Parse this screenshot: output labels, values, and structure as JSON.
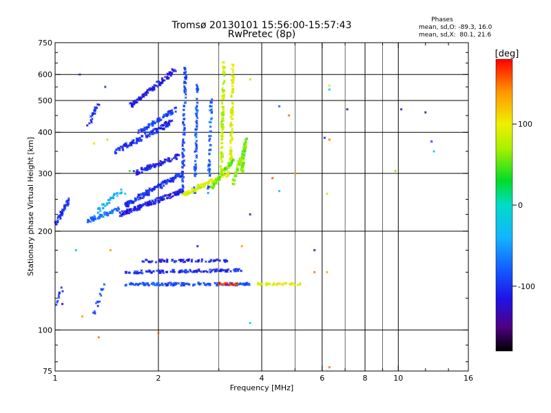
{
  "header": {
    "title": "Tromsø 20130101 15:56:00-15:57:43",
    "subtitle": "RwPretec (8p)",
    "phase_block": {
      "heading": "Phases",
      "line_o": "mean, sd,O: -89.3, 16.0",
      "line_x": "mean, sd,X:  80.1, 21.6"
    }
  },
  "colorbar": {
    "unit_label": "[deg]",
    "ticks": [
      {
        "value": 100,
        "label": "100"
      },
      {
        "value": 0,
        "label": "0"
      },
      {
        "value": -100,
        "label": "-100"
      }
    ],
    "range": [
      -180,
      180
    ]
  },
  "chart_data": {
    "type": "scatter",
    "xlabel": "Frequency [MHz]",
    "ylabel": "Stationary phase Virtual Height [km]",
    "x_scale": "log",
    "y_scale": "log",
    "xlim": [
      1,
      16
    ],
    "ylim": [
      75,
      750
    ],
    "grid": true,
    "x_ticks": [
      {
        "value": 1,
        "label": "1"
      },
      {
        "value": 2,
        "label": "2"
      },
      {
        "value": 4,
        "label": "4"
      },
      {
        "value": 6,
        "label": "6"
      },
      {
        "value": 8,
        "label": "8"
      },
      {
        "value": 10,
        "label": "10"
      },
      {
        "value": 16,
        "label": "16"
      }
    ],
    "x_minor_ticks": [
      3,
      5,
      7,
      9,
      12,
      14
    ],
    "x_grid_major": [
      2,
      4,
      6,
      8,
      10
    ],
    "x_grid_minor": [
      3,
      5,
      7,
      9
    ],
    "y_ticks": [
      {
        "value": 75,
        "label": "75"
      },
      {
        "value": 100,
        "label": "100"
      },
      {
        "value": 200,
        "label": "200"
      },
      {
        "value": 300,
        "label": "300"
      },
      {
        "value": 400,
        "label": "400"
      },
      {
        "value": 500,
        "label": "500"
      },
      {
        "value": 600,
        "label": "600"
      },
      {
        "value": 750,
        "label": "750"
      }
    ],
    "y_minor_ticks": [
      80,
      90,
      125,
      150,
      175,
      225,
      250,
      350,
      450,
      550,
      650,
      700
    ],
    "y_grid": [
      100,
      200,
      300,
      400,
      500,
      600
    ],
    "color_variable": "phase [deg]",
    "traces": [
      {
        "f0": 1.0,
        "f1": 1.1,
        "h0": 210,
        "h1": 250,
        "ph": -105,
        "w": 0.03,
        "n": 50
      },
      {
        "f0": 1.25,
        "f1": 1.55,
        "h0": 215,
        "h1": 235,
        "ph": -70,
        "w": 0.03,
        "n": 60
      },
      {
        "f0": 1.3,
        "f1": 1.55,
        "h0": 225,
        "h1": 265,
        "ph": -40,
        "w": 0.035,
        "n": 40
      },
      {
        "f0": 1.55,
        "f1": 2.35,
        "h0": 225,
        "h1": 265,
        "ph": -115,
        "w": 0.03,
        "n": 160
      },
      {
        "f0": 1.6,
        "f1": 2.35,
        "h0": 240,
        "h1": 300,
        "ph": -100,
        "w": 0.035,
        "n": 150
      },
      {
        "f0": 1.7,
        "f1": 2.3,
        "h0": 300,
        "h1": 340,
        "ph": -110,
        "w": 0.03,
        "n": 90
      },
      {
        "f0": 1.5,
        "f1": 2.2,
        "h0": 350,
        "h1": 430,
        "ph": -105,
        "w": 0.035,
        "n": 120
      },
      {
        "f0": 1.75,
        "f1": 2.25,
        "h0": 400,
        "h1": 470,
        "ph": -95,
        "w": 0.03,
        "n": 80
      },
      {
        "f0": 1.65,
        "f1": 2.25,
        "h0": 480,
        "h1": 620,
        "ph": -110,
        "w": 0.035,
        "n": 110
      },
      {
        "f0": 2.35,
        "f1": 2.4,
        "h0": 270,
        "h1": 640,
        "ph": -90,
        "w": 0.025,
        "n": 90
      },
      {
        "f0": 2.55,
        "f1": 2.6,
        "h0": 260,
        "h1": 560,
        "ph": -85,
        "w": 0.025,
        "n": 70
      },
      {
        "f0": 2.8,
        "f1": 2.85,
        "h0": 260,
        "h1": 500,
        "ph": -80,
        "w": 0.025,
        "n": 50
      },
      {
        "f0": 2.35,
        "f1": 3.2,
        "h0": 258,
        "h1": 300,
        "ph": 90,
        "w": 0.03,
        "n": 90
      },
      {
        "f0": 2.85,
        "f1": 3.3,
        "h0": 270,
        "h1": 330,
        "ph": 55,
        "w": 0.03,
        "n": 70
      },
      {
        "f0": 3.05,
        "f1": 3.1,
        "h0": 300,
        "h1": 650,
        "ph": 80,
        "w": 0.025,
        "n": 110
      },
      {
        "f0": 3.25,
        "f1": 3.3,
        "h0": 330,
        "h1": 650,
        "ph": 95,
        "w": 0.025,
        "n": 90
      },
      {
        "f0": 3.3,
        "f1": 3.6,
        "h0": 280,
        "h1": 370,
        "ph": 60,
        "w": 0.03,
        "n": 70
      },
      {
        "f0": 3.5,
        "f1": 3.6,
        "h0": 300,
        "h1": 380,
        "ph": 55,
        "w": 0.025,
        "n": 50
      },
      {
        "f0": 1.6,
        "f1": 3.7,
        "h0": 138,
        "h1": 138,
        "ph": -85,
        "w": 0.02,
        "n": 150
      },
      {
        "f0": 1.6,
        "f1": 3.5,
        "h0": 150,
        "h1": 152,
        "ph": -105,
        "w": 0.02,
        "n": 120
      },
      {
        "f0": 1.7,
        "f1": 3.2,
        "h0": 162,
        "h1": 163,
        "ph": -110,
        "w": 0.02,
        "n": 70
      },
      {
        "f0": 3.0,
        "f1": 3.4,
        "h0": 138,
        "h1": 138,
        "ph": 165,
        "w": 0.015,
        "n": 20
      },
      {
        "f0": 3.9,
        "f1": 5.3,
        "h0": 138,
        "h1": 138,
        "ph": 95,
        "w": 0.015,
        "n": 40
      },
      {
        "f0": 1.3,
        "f1": 1.4,
        "h0": 110,
        "h1": 145,
        "ph": -90,
        "w": 0.03,
        "n": 15
      },
      {
        "f0": 1.0,
        "f1": 1.05,
        "h0": 118,
        "h1": 135,
        "ph": -100,
        "w": 0.03,
        "n": 10
      },
      {
        "f0": 1.25,
        "f1": 1.35,
        "h0": 420,
        "h1": 500,
        "ph": -105,
        "w": 0.03,
        "n": 25
      }
    ],
    "scatter_points": [
      {
        "f": 1.18,
        "h": 600,
        "ph": -100
      },
      {
        "f": 1.4,
        "h": 550,
        "ph": -95
      },
      {
        "f": 1.3,
        "h": 370,
        "ph": 110
      },
      {
        "f": 1.42,
        "h": 380,
        "ph": 75
      },
      {
        "f": 1.34,
        "h": 95,
        "ph": 150
      },
      {
        "f": 2.0,
        "h": 98,
        "ph": 150
      },
      {
        "f": 1.45,
        "h": 175,
        "ph": 140
      },
      {
        "f": 1.15,
        "h": 175,
        "ph": -40
      },
      {
        "f": 1.6,
        "h": 260,
        "ph": -20
      },
      {
        "f": 1.65,
        "h": 305,
        "ph": 40
      },
      {
        "f": 3.7,
        "h": 580,
        "ph": 70
      },
      {
        "f": 3.7,
        "h": 225,
        "ph": -150
      },
      {
        "f": 3.7,
        "h": 105,
        "ph": -20
      },
      {
        "f": 3.5,
        "h": 180,
        "ph": 140
      },
      {
        "f": 2.6,
        "h": 180,
        "ph": -120
      },
      {
        "f": 4.5,
        "h": 480,
        "ph": -80
      },
      {
        "f": 4.8,
        "h": 450,
        "ph": 150
      },
      {
        "f": 4.5,
        "h": 265,
        "ph": -40
      },
      {
        "f": 5.0,
        "h": 300,
        "ph": 120
      },
      {
        "f": 4.3,
        "h": 290,
        "ph": 160
      },
      {
        "f": 5.7,
        "h": 175,
        "ph": -140
      },
      {
        "f": 5.7,
        "h": 150,
        "ph": 150
      },
      {
        "f": 6.1,
        "h": 385,
        "ph": -110
      },
      {
        "f": 6.3,
        "h": 380,
        "ph": 150
      },
      {
        "f": 6.2,
        "h": 260,
        "ph": 80
      },
      {
        "f": 6.2,
        "h": 150,
        "ph": 130
      },
      {
        "f": 6.3,
        "h": 540,
        "ph": -20
      },
      {
        "f": 6.3,
        "h": 555,
        "ph": 90
      },
      {
        "f": 6.3,
        "h": 77,
        "ph": 150
      },
      {
        "f": 7.1,
        "h": 470,
        "ph": -140
      },
      {
        "f": 9.8,
        "h": 305,
        "ph": 60
      },
      {
        "f": 10.2,
        "h": 470,
        "ph": -110
      },
      {
        "f": 12.0,
        "h": 460,
        "ph": -130
      },
      {
        "f": 12.5,
        "h": 375,
        "ph": -100
      },
      {
        "f": 12.7,
        "h": 350,
        "ph": -20
      },
      {
        "f": 2.1,
        "h": 430,
        "ph": -160
      },
      {
        "f": 1.05,
        "h": 120,
        "ph": -150
      },
      {
        "f": 1.2,
        "h": 110,
        "ph": 140
      }
    ]
  }
}
